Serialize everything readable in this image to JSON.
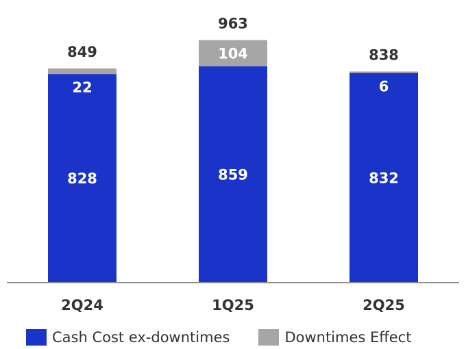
{
  "chart_data": {
    "type": "bar",
    "stacked": true,
    "categories": [
      "2Q24",
      "1Q25",
      "2Q25"
    ],
    "series": [
      {
        "name": "Cash Cost ex-downtimes",
        "values": [
          828,
          859,
          832
        ],
        "color": "#1a33c8"
      },
      {
        "name": "Downtimes Effect",
        "values": [
          22,
          104,
          6
        ],
        "color": "#a6a6a6"
      }
    ],
    "segment_labels": [
      [
        "828",
        "859",
        "832"
      ],
      [
        "22",
        "104",
        "6"
      ]
    ],
    "totals": [
      "849",
      "963",
      "838"
    ],
    "ylim": [
      0,
      1000
    ],
    "grid": false,
    "legend_position": "bottom-left",
    "title": "",
    "xlabel": "",
    "ylabel": ""
  }
}
